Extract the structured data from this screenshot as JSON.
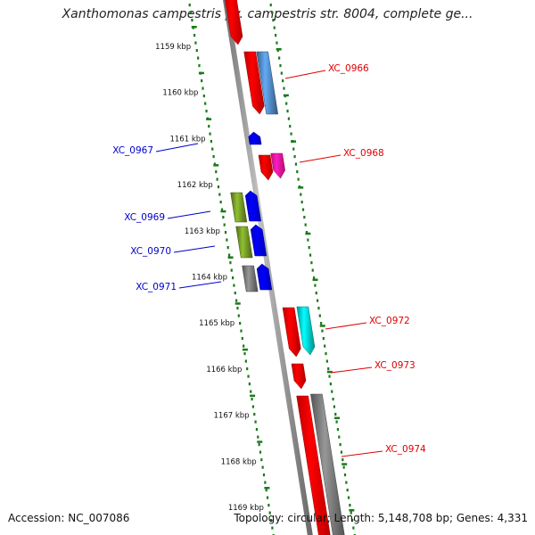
{
  "title": "Xanthomonas campestris pv. campestris str. 8004, complete ge...",
  "footer": {
    "accession": "Accession: NC_007086",
    "topology": "Topology: circular; Length: 5,148,708 bp; Genes: 4,331"
  },
  "scale": {
    "unit": "kbp",
    "labels": [
      "1159 kbp",
      "1160 kbp",
      "1161 kbp",
      "1162 kbp",
      "1163 kbp",
      "1164 kbp",
      "1165 kbp",
      "1166 kbp",
      "1167 kbp",
      "1168 kbp",
      "1169 kbp"
    ]
  },
  "colors": {
    "red": "#ff0000",
    "steel_blue": "#4a7fb5",
    "pink": "#ff1493",
    "blue": "#0000ff",
    "olive": "#6b8e23",
    "gray": "#707070",
    "cyan": "#00c8c8",
    "backbone": "#909090",
    "scale_ticks": "#1a7a1a",
    "label_forward": "#e00000",
    "label_reverse": "#0000cc"
  },
  "labels": [
    {
      "name": "XC_0966",
      "strand": "forward"
    },
    {
      "name": "XC_0967",
      "strand": "reverse"
    },
    {
      "name": "XC_0968",
      "strand": "forward"
    },
    {
      "name": "XC_0969",
      "strand": "reverse"
    },
    {
      "name": "XC_0970",
      "strand": "reverse"
    },
    {
      "name": "XC_0971",
      "strand": "reverse"
    },
    {
      "name": "XC_0972",
      "strand": "forward"
    },
    {
      "name": "XC_0973",
      "strand": "forward"
    },
    {
      "name": "XC_0974",
      "strand": "forward"
    }
  ]
}
